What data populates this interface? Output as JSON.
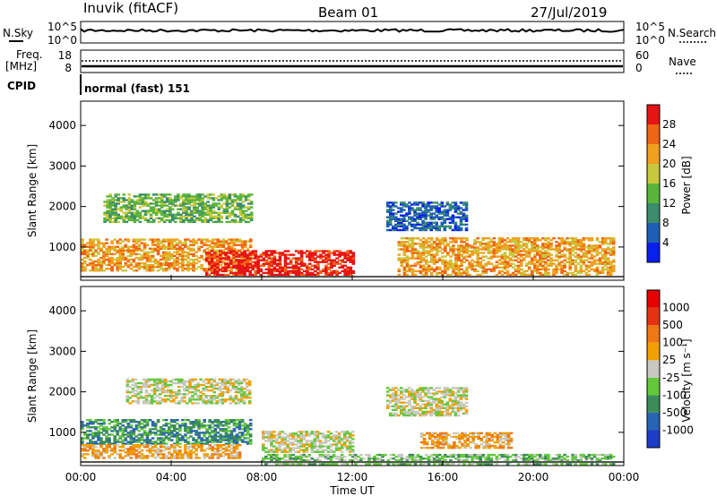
{
  "header": {
    "station": "Inuvik (fitACF)",
    "beam": "Beam 01",
    "date": "27/Jul/2019"
  },
  "top_panels": {
    "nsky_label": "N.Sky",
    "nsky_ticks": [
      "10^5",
      "10^0"
    ],
    "nsearch_label": "N.Search",
    "nsearch_ticks": [
      "10^5",
      "10^0"
    ],
    "freq_label_1": "Freq.",
    "freq_label_2": "[MHz]",
    "freq_ticks": [
      "18",
      "8"
    ],
    "nave_label": "Nave",
    "nave_ticks": [
      "60",
      "0"
    ],
    "cpid_label": "CPID",
    "cpid_text": "normal (fast) 151"
  },
  "chart_data": [
    {
      "type": "heatmap",
      "name": "power",
      "ylabel": "Slant Range [km]",
      "ylim": [
        180,
        4600
      ],
      "y_ticks": [
        "1000",
        "2000",
        "3000",
        "4000"
      ],
      "y_tick_values": [
        1000,
        2000,
        3000,
        4000
      ],
      "colorbar_label": "Power [dB]",
      "colorbar_ticks": [
        "4",
        "8",
        "12",
        "16",
        "20",
        "24",
        "28"
      ],
      "colors": [
        "#0a1ef0",
        "#1e5fb4",
        "#3c8c6e",
        "#5ab43c",
        "#c8c83c",
        "#f0a01e",
        "#f06414",
        "#e61414"
      ],
      "echo_bands": [
        {
          "t0": 0.0,
          "t1": 7.5,
          "r0": 400,
          "r1": 1200,
          "level": 5
        },
        {
          "t0": 5.5,
          "t1": 12.0,
          "r0": 250,
          "r1": 900,
          "level": 7
        },
        {
          "t0": 1.0,
          "t1": 7.5,
          "r0": 1600,
          "r1": 2300,
          "level": 3
        },
        {
          "t0": 13.5,
          "t1": 17.0,
          "r0": 1400,
          "r1": 2100,
          "level": 1
        },
        {
          "t0": 14.0,
          "t1": 23.5,
          "r0": 250,
          "r1": 1200,
          "level": 5
        }
      ]
    },
    {
      "type": "heatmap",
      "name": "velocity",
      "xlabel": "Time UT",
      "x_ticks": [
        "00:00",
        "04:00",
        "08:00",
        "12:00",
        "16:00",
        "20:00",
        "00:00"
      ],
      "ylabel": "Slant Range [km]",
      "ylim": [
        180,
        4600
      ],
      "y_ticks": [
        "1000",
        "2000",
        "3000",
        "4000"
      ],
      "y_tick_values": [
        1000,
        2000,
        3000,
        4000
      ],
      "colorbar_label": "Velocity [m s⁻¹]",
      "colorbar_ticks": [
        "1000",
        "500",
        "100",
        "25",
        "-25",
        "-100",
        "-500",
        "-1000"
      ],
      "colors": [
        "#1e3cc8",
        "#2864b4",
        "#3c8c5a",
        "#64c83c",
        "#c8c8c0",
        "#f0a000",
        "#f07814",
        "#e63214",
        "#e60000"
      ],
      "echo_bands": [
        {
          "t0": 0.0,
          "t1": 7.5,
          "r0": 700,
          "r1": 1300,
          "level": 2
        },
        {
          "t0": 0.0,
          "t1": 7.0,
          "r0": 350,
          "r1": 700,
          "level": 5
        },
        {
          "t0": 2.0,
          "t1": 7.5,
          "r0": 1700,
          "r1": 2300,
          "level": 4
        },
        {
          "t0": 8.0,
          "t1": 12.0,
          "r0": 500,
          "r1": 1000,
          "level": 4
        },
        {
          "t0": 8.0,
          "t1": 23.5,
          "r0": 200,
          "r1": 450,
          "level": 3
        },
        {
          "t0": 13.5,
          "t1": 17.0,
          "r0": 1400,
          "r1": 2100,
          "level": 4
        },
        {
          "t0": 15.0,
          "t1": 19.0,
          "r0": 600,
          "r1": 1000,
          "level": 5
        }
      ]
    }
  ]
}
